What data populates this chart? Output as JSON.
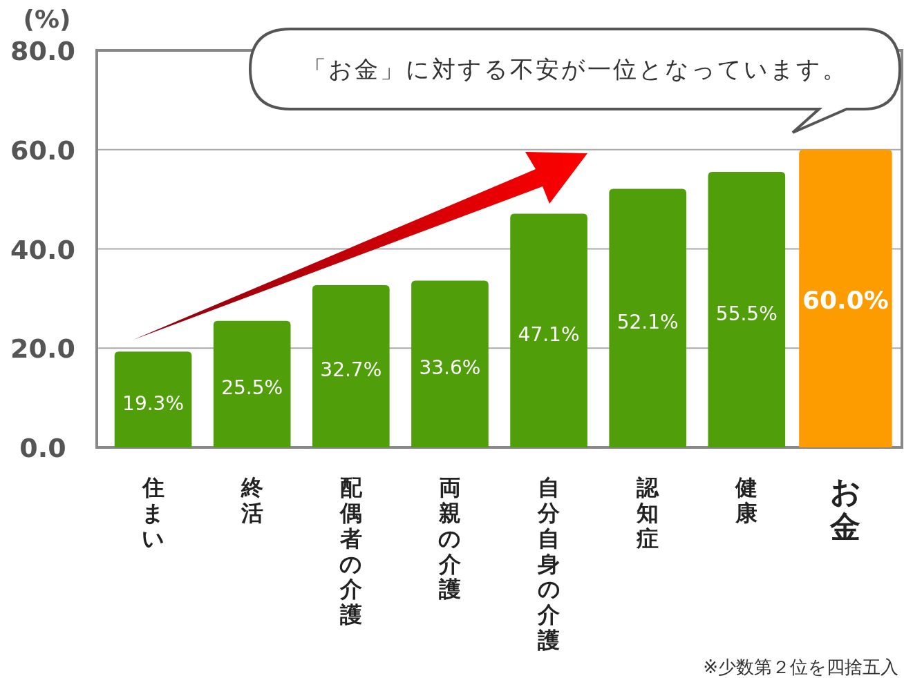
{
  "chart_data": {
    "type": "bar",
    "ylabel": "(%)",
    "categories": [
      "住まい",
      "終活",
      "配偶者の介護",
      "両親の介護",
      "自分自身の介護",
      "認知症",
      "健康",
      "お金"
    ],
    "values": [
      19.3,
      25.5,
      32.7,
      33.6,
      47.1,
      52.1,
      55.5,
      60.0
    ],
    "colors": [
      "#4f9e0a",
      "#4f9e0a",
      "#4f9e0a",
      "#4f9e0a",
      "#4f9e0a",
      "#4f9e0a",
      "#4f9e0a",
      "#fd9c00"
    ],
    "value_labels": [
      "19.3%",
      "25.5%",
      "32.7%",
      "33.6%",
      "47.1%",
      "52.1%",
      "55.5%",
      "60.0%"
    ],
    "ylim": [
      0,
      80
    ],
    "yticks": [
      {
        "value": 0,
        "label": "0.0"
      },
      {
        "value": 20,
        "label": "20.0"
      },
      {
        "value": 40,
        "label": "40.0"
      },
      {
        "value": 60,
        "label": "60.0"
      },
      {
        "value": 80,
        "label": "80.0"
      }
    ],
    "grid": "y",
    "annotations": [
      "「お金」に対する不安が一位となっています。",
      "※少数第２位を四捨五入"
    ]
  }
}
